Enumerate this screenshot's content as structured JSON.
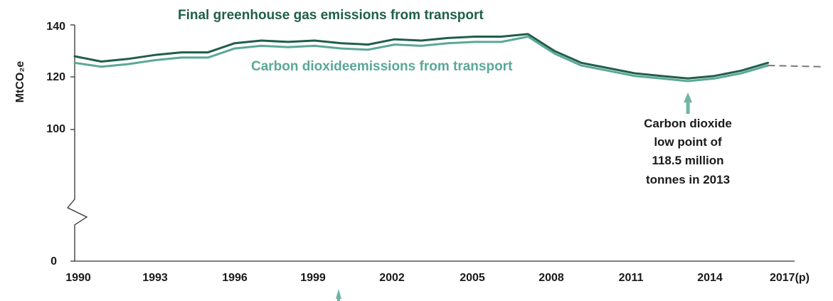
{
  "chart_data": {
    "type": "line",
    "ylabel": "MtCO₂e",
    "y_ticks": [
      "140",
      "120",
      "100",
      "0"
    ],
    "x_ticks": [
      "1990",
      "1993",
      "1996",
      "1999",
      "2002",
      "2005",
      "2008",
      "2011",
      "2014",
      "2017(p)"
    ],
    "y_axis_break": true,
    "ylim": [
      100,
      140
    ],
    "x": [
      1990,
      1991,
      1992,
      1993,
      1994,
      1995,
      1996,
      1997,
      1998,
      1999,
      2000,
      2001,
      2002,
      2003,
      2004,
      2005,
      2006,
      2007,
      2008,
      2009,
      2010,
      2011,
      2012,
      2013,
      2014,
      2015,
      2016,
      2017
    ],
    "series": [
      {
        "name": "Final greenhouse gas emissions from transport",
        "color": "#1f5e4b",
        "values": [
          128,
          126,
          127,
          128.5,
          129.5,
          129.5,
          133,
          134,
          133.5,
          134,
          133,
          132.5,
          134.5,
          134,
          135,
          135.5,
          135.5,
          136.5,
          130,
          125.5,
          123.5,
          121.5,
          120.5,
          119.5,
          120.5,
          122.5,
          125.5,
          null
        ],
        "projected_values": [
          null,
          null,
          null,
          null,
          null,
          null,
          null,
          null,
          null,
          null,
          null,
          null,
          null,
          null,
          null,
          null,
          null,
          null,
          null,
          null,
          null,
          null,
          null,
          null,
          null,
          null,
          null,
          null
        ]
      },
      {
        "name": "Carbon dioxideemissions from transport",
        "color": "#5aa898",
        "values": [
          125.5,
          124,
          125,
          126.5,
          127.5,
          127.5,
          131,
          132,
          131.5,
          132,
          131,
          130.5,
          132.5,
          132,
          133,
          133.5,
          133.5,
          135.5,
          129,
          124.5,
          122.5,
          120.5,
          119.5,
          118.5,
          119.5,
          121.5,
          124.5,
          null
        ],
        "projected": [
          2016,
          124.5,
          2017,
          124
        ]
      }
    ],
    "annotations": [
      {
        "text_lines": [
          "Carbon dioxide",
          "low point of",
          "118.5 million",
          "tonnes in 2013"
        ],
        "x": 2013,
        "y": 118.5
      }
    ]
  },
  "colors": {
    "ghg": "#1f5e4b",
    "co2": "#5aa898",
    "arrow": "#6fb5a3",
    "axis": "#333333"
  }
}
